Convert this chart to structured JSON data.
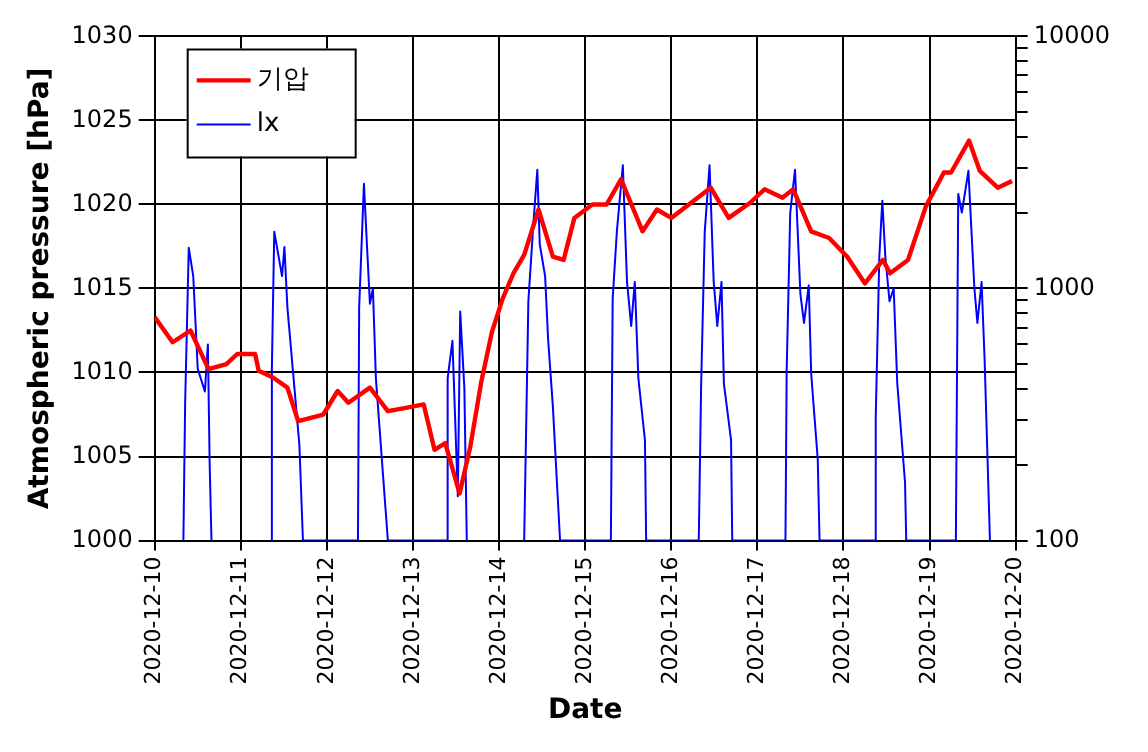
{
  "chart_data": {
    "type": "line",
    "xlabel": "Date",
    "ylabel": "Atmospheric pressure [hPa]",
    "xlim": [
      "2020-12-10",
      "2020-12-20"
    ],
    "xticks": [
      "2020-12-10",
      "2020-12-11",
      "2020-12-12",
      "2020-12-13",
      "2020-12-14",
      "2020-12-15",
      "2020-12-16",
      "2020-12-17",
      "2020-12-18",
      "2020-12-19",
      "2020-12-20"
    ],
    "ylim": [
      1000,
      1030
    ],
    "yticks": [
      1000,
      1005,
      1010,
      1015,
      1020,
      1025,
      1030
    ],
    "y2lim": [
      100,
      10000
    ],
    "y2ticks": [
      100,
      {
        "value": 200,
        "label": null
      },
      {
        "value": 300,
        "label": null
      },
      {
        "value": 400,
        "label": null
      },
      {
        "value": 500,
        "label": null
      },
      {
        "value": 600,
        "label": null
      },
      {
        "value": 700,
        "label": null
      },
      {
        "value": 800,
        "label": null
      },
      {
        "value": 900,
        "label": null
      },
      1000,
      {
        "value": 2000,
        "label": null
      },
      {
        "value": 3000,
        "label": null
      },
      {
        "value": 4000,
        "label": null
      },
      {
        "value": 5000,
        "label": null
      },
      {
        "value": 6000,
        "label": null
      },
      {
        "value": 7000,
        "label": null
      },
      {
        "value": 8000,
        "label": null
      },
      {
        "value": 9000,
        "label": null
      },
      10000
    ],
    "log": "y2",
    "grid": true,
    "legend": "top left",
    "marker": "none",
    "line_style": "solid",
    "series": [
      {
        "name": "기압",
        "color": "#ff0000",
        "x": [
          "2020-12-10T00:00",
          "2020-12-10T05:00",
          "2020-12-10T10:00",
          "2020-12-10T15:00",
          "2020-12-10T20:00",
          "2020-12-10T23:00",
          "2020-12-11T04:00",
          "2020-12-11T05:00",
          "2020-12-11T09:00",
          "2020-12-11T13:00",
          "2020-12-11T16:00",
          "2020-12-11T23:00",
          "2020-12-12T03:00",
          "2020-12-12T06:00",
          "2020-12-12T12:00",
          "2020-12-12T17:00",
          "2020-12-12T22:00",
          "2020-12-13T03:00",
          "2020-12-13T06:00",
          "2020-12-13T09:00",
          "2020-12-13T13:00",
          "2020-12-13T16:00",
          "2020-12-13T19:00",
          "2020-12-13T22:00",
          "2020-12-14T01:00",
          "2020-12-14T04:00",
          "2020-12-14T07:00",
          "2020-12-14T11:00",
          "2020-12-14T15:00",
          "2020-12-14T18:00",
          "2020-12-14T21:00",
          "2020-12-15T02:00",
          "2020-12-15T06:00",
          "2020-12-15T10:00",
          "2020-12-15T16:00",
          "2020-12-15T20:00",
          "2020-12-16T00:00",
          "2020-12-16T11:00",
          "2020-12-16T16:00",
          "2020-12-16T22:00",
          "2020-12-17T02:00",
          "2020-12-17T07:00",
          "2020-12-17T10:00",
          "2020-12-17T15:00",
          "2020-12-17T20:00",
          "2020-12-18T01:00",
          "2020-12-18T06:00",
          "2020-12-18T11:00",
          "2020-12-18T13:00",
          "2020-12-18T18:00",
          "2020-12-18T23:00",
          "2020-12-19T04:00",
          "2020-12-19T06:00",
          "2020-12-19T11:00",
          "2020-12-19T14:00",
          "2020-12-19T19:00",
          "2020-12-19T23:00"
        ],
        "values": [
          1013.3,
          1011.8,
          1012.5,
          1010.2,
          1010.5,
          1011.1,
          1011.1,
          1010.1,
          1009.7,
          1009.1,
          1007.1,
          1007.5,
          1008.9,
          1008.2,
          1009.1,
          1007.7,
          1007.9,
          1008.1,
          1005.4,
          1005.8,
          1002.8,
          1005.6,
          1009.4,
          1012.4,
          1014.4,
          1015.9,
          1017.0,
          1019.7,
          1016.9,
          1016.7,
          1019.2,
          1020.0,
          1020.0,
          1021.5,
          1018.4,
          1019.7,
          1019.2,
          1021.0,
          1019.2,
          1020.1,
          1020.9,
          1020.4,
          1020.9,
          1018.4,
          1018.0,
          1016.9,
          1015.3,
          1016.7,
          1015.9,
          1016.7,
          1019.9,
          1021.9,
          1021.9,
          1023.8,
          1022.0,
          1021.0,
          1021.4
        ]
      },
      {
        "name": "lx",
        "color": "#0000ff",
        "axis": "y2",
        "x": [
          "2020-12-10T08:00",
          "2020-12-10T08:30",
          "2020-12-10T09:30",
          "2020-12-10T10:45",
          "2020-12-10T12:00",
          "2020-12-10T14:00",
          "2020-12-10T14:50",
          "2020-12-10T15:20",
          "2020-12-10T15:50",
          "2020-12-10T16:50",
          "2020-12-11T08:20",
          "2020-12-11T08:40",
          "2020-12-11T09:20",
          "2020-12-11T11:30",
          "2020-12-11T12:10",
          "2020-12-11T13:00",
          "2020-12-11T16:20",
          "2020-12-11T17:20",
          "2020-12-12T08:40",
          "2020-12-12T09:00",
          "2020-12-12T10:20",
          "2020-12-12T11:10",
          "2020-12-12T12:00",
          "2020-12-12T12:50",
          "2020-12-12T13:40",
          "2020-12-12T17:00",
          "2020-12-13T09:20",
          "2020-12-13T09:40",
          "2020-12-13T11:00",
          "2020-12-13T12:30",
          "2020-12-13T13:10",
          "2020-12-13T14:20",
          "2020-12-13T15:00",
          "2020-12-13T17:20",
          "2020-12-14T07:00",
          "2020-12-14T08:10",
          "2020-12-14T09:40",
          "2020-12-14T10:40",
          "2020-12-14T11:20",
          "2020-12-14T12:50",
          "2020-12-14T13:40",
          "2020-12-14T15:00",
          "2020-12-14T17:00",
          "2020-12-15T07:10",
          "2020-12-15T07:40",
          "2020-12-15T08:50",
          "2020-12-15T10:30",
          "2020-12-15T11:40",
          "2020-12-15T12:50",
          "2020-12-15T13:50",
          "2020-12-15T14:50",
          "2020-12-15T16:40",
          "2020-12-15T17:00",
          "2020-12-16T07:40",
          "2020-12-16T08:20",
          "2020-12-16T09:20",
          "2020-12-16T10:40",
          "2020-12-16T11:50",
          "2020-12-16T12:50",
          "2020-12-16T14:00",
          "2020-12-16T14:40",
          "2020-12-16T16:40",
          "2020-12-16T17:00",
          "2020-12-17T07:50",
          "2020-12-17T08:10",
          "2020-12-17T09:10",
          "2020-12-17T10:30",
          "2020-12-17T12:00",
          "2020-12-17T13:00",
          "2020-12-17T14:20",
          "2020-12-17T15:00",
          "2020-12-17T16:50",
          "2020-12-17T17:20",
          "2020-12-18T08:40",
          "2020-12-18T09:00",
          "2020-12-18T10:00",
          "2020-12-18T10:50",
          "2020-12-18T11:40",
          "2020-12-18T12:50",
          "2020-12-18T14:00",
          "2020-12-18T15:00",
          "2020-12-18T17:10",
          "2020-12-18T17:30",
          "2020-12-19T07:20",
          "2020-12-19T08:00",
          "2020-12-19T09:00",
          "2020-12-19T10:50",
          "2020-12-19T12:30",
          "2020-12-19T13:20",
          "2020-12-19T14:30",
          "2020-12-19T15:20",
          "2020-12-19T16:50"
        ],
        "values": [
          100,
          355,
          1450,
          1120,
          480,
          390,
          600,
          200,
          100,
          null,
          100,
          480,
          1680,
          1120,
          1460,
          840,
          240,
          100,
          100,
          840,
          2600,
          1490,
          870,
          1000,
          440,
          100,
          100,
          440,
          620,
          150,
          810,
          400,
          100,
          null,
          100,
          890,
          1900,
          2960,
          1500,
          1120,
          630,
          340,
          100,
          100,
          910,
          1680,
          3080,
          1060,
          710,
          1060,
          440,
          250,
          100,
          100,
          420,
          1680,
          3080,
          1060,
          710,
          1060,
          420,
          250,
          100,
          100,
          470,
          2000,
          2960,
          950,
          730,
          1030,
          460,
          210,
          100,
          100,
          310,
          1340,
          2230,
          1340,
          890,
          1000,
          420,
          170,
          100,
          100,
          2370,
          2000,
          2930,
          1000,
          730,
          1060,
          530,
          100
        ]
      }
    ]
  }
}
